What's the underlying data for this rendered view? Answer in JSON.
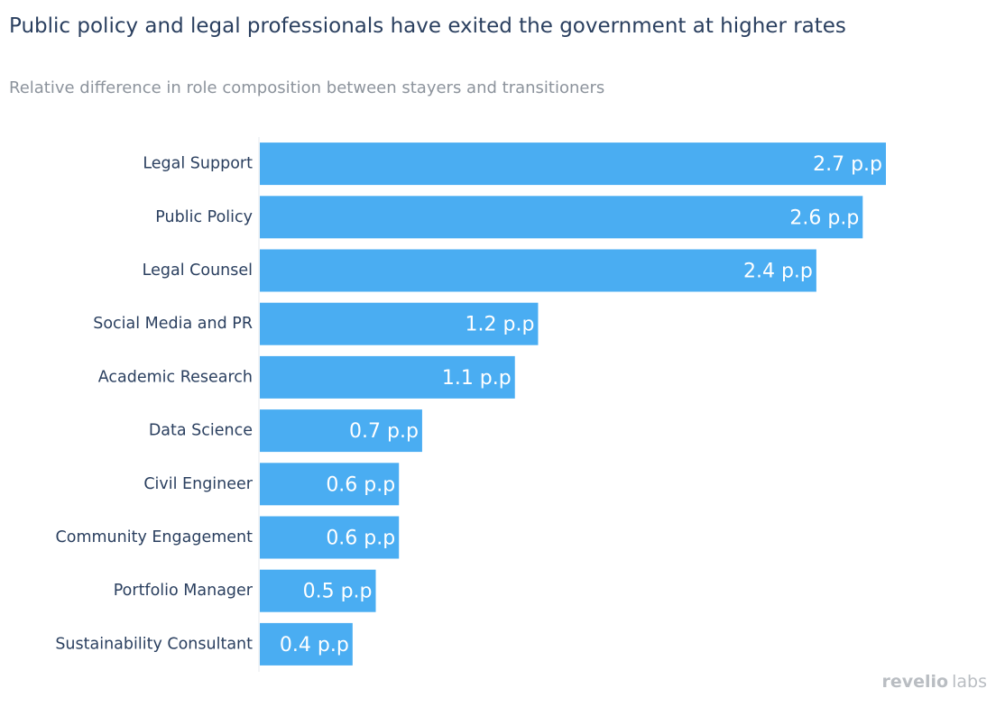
{
  "title": "Public policy and legal professionals have exited the government at higher rates",
  "subtitle": "Relative difference in role composition between stayers and transitioners",
  "brand": {
    "part1": "revelio",
    "part2": "labs"
  },
  "colors": {
    "bar": "#4aadf2",
    "title": "#2a3f5f",
    "subtitle": "#8c939c",
    "category_text": "#2a3f5f",
    "value_text": "#ffffff",
    "axis_line": "#e5e8ec",
    "brand": "#b9bdc2"
  },
  "chart_data": {
    "type": "bar",
    "orientation": "horizontal",
    "categories": [
      "Legal Support",
      "Public Policy",
      "Legal Counsel",
      "Social Media and PR",
      "Academic Research",
      "Data Science",
      "Civil Engineer",
      "Community Engagement",
      "Portfolio Manager",
      "Sustainability Consultant"
    ],
    "values": [
      2.7,
      2.6,
      2.4,
      1.2,
      1.1,
      0.7,
      0.6,
      0.6,
      0.5,
      0.4
    ],
    "value_labels": [
      "2.7 p.p",
      "2.6 p.p",
      "2.4 p.p",
      "1.2 p.p",
      "1.1 p.p",
      "0.7 p.p",
      "0.6 p.p",
      "0.6 p.p",
      "0.5 p.p",
      "0.4 p.p"
    ],
    "xlim": [
      0,
      2.7
    ],
    "grid": false,
    "legend": "none"
  }
}
